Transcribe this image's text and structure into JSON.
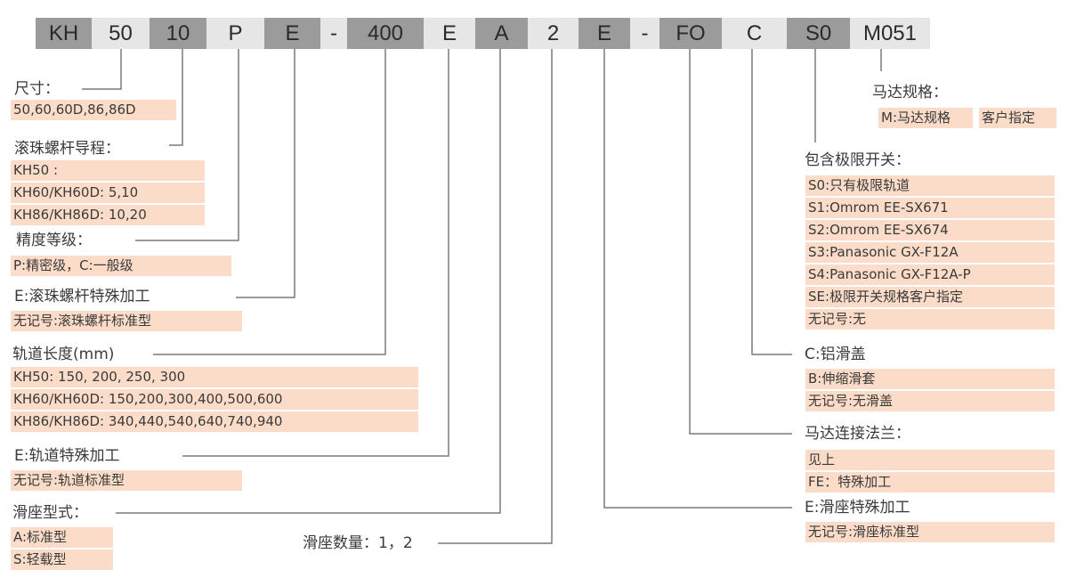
{
  "code_segments": [
    "KH",
    "50",
    "10",
    "P",
    "E",
    "-",
    "400",
    "E",
    "A",
    "2",
    "E",
    "-",
    "FO",
    "C",
    "S0",
    "M051"
  ],
  "size": {
    "title": "尺寸：",
    "options": [
      "50,60,60D,86,86D"
    ]
  },
  "lead": {
    "title": "滚珠螺杆导程：",
    "options": [
      "KH50 :",
      "KH60/KH60D: 5,10",
      "KH86/KH86D: 10,20"
    ]
  },
  "precision": {
    "title": "精度等级：",
    "options": [
      "P:精密级，C:一般级"
    ]
  },
  "screw_special": {
    "title": "E:滚珠螺杆特殊加工",
    "options": [
      "无记号:滚珠螺杆标准型"
    ]
  },
  "rail_length": {
    "title": "轨道长度(mm)",
    "options": [
      "KH50: 150, 200, 250, 300",
      "KH60/KH60D: 150,200,300,400,500,600",
      "KH86/KH86D: 340,440,540,640,740,940"
    ]
  },
  "rail_special": {
    "title": "E:轨道特殊加工",
    "options": [
      "无记号:轨道标准型"
    ]
  },
  "slider_type": {
    "title": "滑座型式：",
    "options": [
      "A:标准型",
      "S:轻载型"
    ]
  },
  "slider_count": {
    "title": "滑座数量：1，2"
  },
  "motor": {
    "title": "马达规格：",
    "options": [
      "M:马达规格",
      "客户指定"
    ]
  },
  "limit_switch": {
    "title": "包含极限开关：",
    "options": [
      "S0:只有极限轨道",
      "S1:Omrom EE-SX671",
      "S2:Omrom EE-SX674",
      "S3:Panasonic GX-F12A",
      "S4:Panasonic GX-F12A-P",
      "SE:极限开关规格客户指定",
      "无记号:无"
    ]
  },
  "cover": {
    "title": "C:铝滑盖",
    "options": [
      "B:伸缩滑套",
      "无记号:无滑盖"
    ]
  },
  "flange": {
    "title": "马达连接法兰：",
    "options": [
      "见上",
      "FE：特殊加工"
    ]
  },
  "slider_special": {
    "title": "E:滑座特殊加工",
    "options": [
      "无记号:滑座标准型"
    ]
  },
  "colors": {
    "dark_segment": "#9b9b9b",
    "light_segment": "#e6e6e6",
    "highlight": "#fbdcc8",
    "line": "#7a7a7a"
  }
}
